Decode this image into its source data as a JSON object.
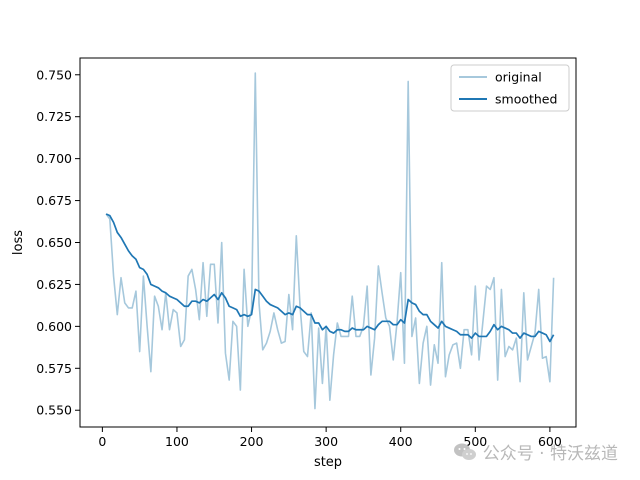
{
  "chart_data": {
    "type": "line",
    "title": "",
    "xlabel": "step",
    "ylabel": "loss",
    "xlim": [
      -30,
      635
    ],
    "ylim": [
      0.54,
      0.76
    ],
    "xticks": [
      0,
      100,
      200,
      300,
      400,
      500,
      600
    ],
    "yticks": [
      0.55,
      0.575,
      0.6,
      0.625,
      0.65,
      0.675,
      0.7,
      0.725,
      0.75
    ],
    "grid": false,
    "legend_position": "top-right",
    "series": [
      {
        "name": "original",
        "color": "#a6c8dc",
        "x": [
          5,
          10,
          15,
          20,
          25,
          30,
          35,
          40,
          45,
          50,
          55,
          60,
          65,
          70,
          75,
          80,
          85,
          90,
          95,
          100,
          105,
          110,
          115,
          120,
          125,
          130,
          135,
          140,
          145,
          150,
          155,
          160,
          165,
          170,
          175,
          180,
          185,
          190,
          195,
          200,
          205,
          210,
          215,
          220,
          225,
          230,
          235,
          240,
          245,
          250,
          255,
          260,
          265,
          270,
          275,
          280,
          285,
          290,
          295,
          300,
          305,
          310,
          315,
          320,
          325,
          330,
          335,
          340,
          345,
          350,
          355,
          360,
          365,
          370,
          375,
          380,
          385,
          390,
          395,
          400,
          405,
          410,
          415,
          420,
          425,
          430,
          435,
          440,
          445,
          450,
          455,
          460,
          465,
          470,
          475,
          480,
          485,
          490,
          495,
          500,
          505,
          510,
          515,
          520,
          525,
          530,
          535,
          540,
          545,
          550,
          555,
          560,
          565,
          570,
          575,
          580,
          585,
          590,
          595,
          600,
          605
        ],
        "y": [
          0.667,
          0.664,
          0.63,
          0.607,
          0.629,
          0.614,
          0.611,
          0.611,
          0.621,
          0.585,
          0.63,
          0.6,
          0.573,
          0.618,
          0.612,
          0.598,
          0.62,
          0.598,
          0.61,
          0.608,
          0.588,
          0.592,
          0.63,
          0.634,
          0.622,
          0.604,
          0.638,
          0.606,
          0.637,
          0.637,
          0.602,
          0.65,
          0.584,
          0.568,
          0.603,
          0.6,
          0.562,
          0.634,
          0.6,
          0.61,
          0.751,
          0.614,
          0.586,
          0.59,
          0.597,
          0.608,
          0.598,
          0.59,
          0.591,
          0.619,
          0.598,
          0.654,
          0.612,
          0.585,
          0.582,
          0.608,
          0.551,
          0.599,
          0.566,
          0.6,
          0.556,
          0.583,
          0.602,
          0.594,
          0.594,
          0.594,
          0.618,
          0.594,
          0.594,
          0.6,
          0.624,
          0.571,
          0.593,
          0.636,
          0.62,
          0.605,
          0.6,
          0.58,
          0.602,
          0.632,
          0.578,
          0.746,
          0.594,
          0.605,
          0.566,
          0.59,
          0.6,
          0.565,
          0.589,
          0.578,
          0.638,
          0.57,
          0.583,
          0.589,
          0.59,
          0.575,
          0.598,
          0.598,
          0.583,
          0.624,
          0.58,
          0.602,
          0.624,
          0.622,
          0.629,
          0.568,
          0.622,
          0.582,
          0.588,
          0.586,
          0.593,
          0.567,
          0.62,
          0.58,
          0.588,
          0.596,
          0.622,
          0.581,
          0.582,
          0.567,
          0.629
        ]
      },
      {
        "name": "smoothed",
        "color": "#1f77b4",
        "x": [
          5,
          10,
          15,
          20,
          25,
          30,
          35,
          40,
          45,
          50,
          55,
          60,
          65,
          70,
          75,
          80,
          85,
          90,
          95,
          100,
          105,
          110,
          115,
          120,
          125,
          130,
          135,
          140,
          145,
          150,
          155,
          160,
          165,
          170,
          175,
          180,
          185,
          190,
          195,
          200,
          205,
          210,
          215,
          220,
          225,
          230,
          235,
          240,
          245,
          250,
          255,
          260,
          265,
          270,
          275,
          280,
          285,
          290,
          295,
          300,
          305,
          310,
          315,
          320,
          325,
          330,
          335,
          340,
          345,
          350,
          355,
          360,
          365,
          370,
          375,
          380,
          385,
          390,
          395,
          400,
          405,
          410,
          415,
          420,
          425,
          430,
          435,
          440,
          445,
          450,
          455,
          460,
          465,
          470,
          475,
          480,
          485,
          490,
          495,
          500,
          505,
          510,
          515,
          520,
          525,
          530,
          535,
          540,
          545,
          550,
          555,
          560,
          565,
          570,
          575,
          580,
          585,
          590,
          595,
          600,
          605
        ],
        "y": [
          0.667,
          0.666,
          0.662,
          0.656,
          0.653,
          0.649,
          0.645,
          0.642,
          0.64,
          0.635,
          0.634,
          0.631,
          0.625,
          0.624,
          0.623,
          0.621,
          0.62,
          0.618,
          0.617,
          0.616,
          0.614,
          0.612,
          0.612,
          0.615,
          0.615,
          0.614,
          0.616,
          0.615,
          0.617,
          0.619,
          0.616,
          0.62,
          0.617,
          0.612,
          0.611,
          0.61,
          0.606,
          0.607,
          0.606,
          0.607,
          0.622,
          0.621,
          0.618,
          0.615,
          0.613,
          0.612,
          0.611,
          0.609,
          0.607,
          0.608,
          0.607,
          0.612,
          0.611,
          0.609,
          0.607,
          0.607,
          0.602,
          0.602,
          0.598,
          0.6,
          0.597,
          0.596,
          0.598,
          0.598,
          0.597,
          0.597,
          0.599,
          0.598,
          0.598,
          0.598,
          0.6,
          0.599,
          0.598,
          0.601,
          0.603,
          0.603,
          0.603,
          0.601,
          0.601,
          0.604,
          0.602,
          0.616,
          0.614,
          0.613,
          0.609,
          0.607,
          0.607,
          0.603,
          0.601,
          0.599,
          0.603,
          0.6,
          0.599,
          0.598,
          0.597,
          0.595,
          0.595,
          0.595,
          0.593,
          0.596,
          0.594,
          0.594,
          0.594,
          0.597,
          0.601,
          0.598,
          0.6,
          0.599,
          0.598,
          0.596,
          0.596,
          0.593,
          0.596,
          0.595,
          0.594,
          0.594,
          0.597,
          0.596,
          0.595,
          0.591,
          0.595
        ]
      }
    ]
  },
  "watermark": {
    "text": "公众号 · 特沃兹道",
    "icon": "wechat-icon"
  }
}
